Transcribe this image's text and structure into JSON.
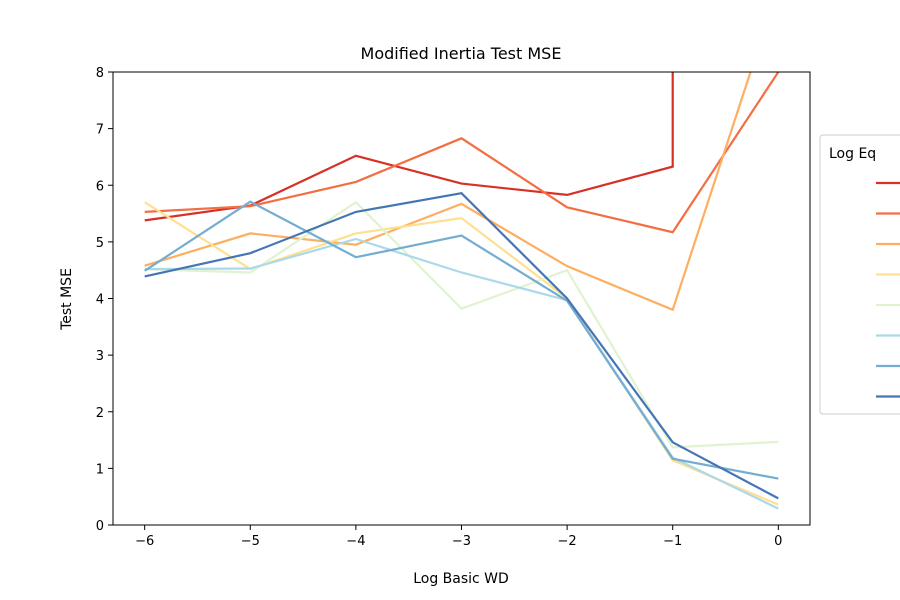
{
  "chart_data": {
    "type": "line",
    "title": "Modified Inertia Test MSE",
    "xlabel": "Log Basic WD",
    "ylabel": "Test MSE",
    "xlim": [
      -6.3,
      0.3
    ],
    "ylim": [
      0,
      8
    ],
    "x_ticks": [
      -6,
      -5,
      -4,
      -3,
      -2,
      -1,
      0
    ],
    "x_tick_labels": [
      "−6",
      "−5",
      "−4",
      "−3",
      "−2",
      "−1",
      "0"
    ],
    "y_ticks": [
      0,
      1,
      2,
      3,
      4,
      5,
      6,
      7,
      8
    ],
    "y_tick_labels": [
      "0",
      "1",
      "2",
      "3",
      "4",
      "5",
      "6",
      "7",
      "8"
    ],
    "grid": false,
    "legend": {
      "title": "Log Eq",
      "placement": "right, outside (clipped)"
    },
    "x": [
      -6,
      -5,
      -4,
      -3,
      -2,
      -1,
      0
    ],
    "series": [
      {
        "color": "#d73027",
        "values": [
          5.38,
          5.64,
          6.52,
          6.03,
          5.83,
          6.33,
          9.5
        ],
        "extra": [
          [
            -1,
            9.5
          ]
        ]
      },
      {
        "color": "#f46d43",
        "values": [
          5.53,
          5.63,
          6.06,
          6.83,
          5.61,
          5.17,
          8.0
        ]
      },
      {
        "color": "#fdae61",
        "values": [
          4.58,
          5.15,
          4.95,
          5.67,
          4.57,
          3.8,
          9.5
        ]
      },
      {
        "color": "#fee090",
        "values": [
          5.7,
          4.52,
          5.15,
          5.42,
          4.0,
          1.14,
          0.36
        ]
      },
      {
        "color": "#e0f3d0",
        "values": [
          4.52,
          4.46,
          5.7,
          3.82,
          4.5,
          1.37,
          1.47
        ]
      },
      {
        "color": "#abd9e9",
        "values": [
          4.52,
          4.53,
          5.05,
          4.46,
          3.97,
          1.19,
          0.29
        ]
      },
      {
        "color": "#74add1",
        "values": [
          4.49,
          5.71,
          4.73,
          5.11,
          3.96,
          1.17,
          0.82
        ]
      },
      {
        "color": "#4575b4",
        "values": [
          4.39,
          4.8,
          5.53,
          5.86,
          4.0,
          1.46,
          0.47
        ]
      }
    ]
  }
}
